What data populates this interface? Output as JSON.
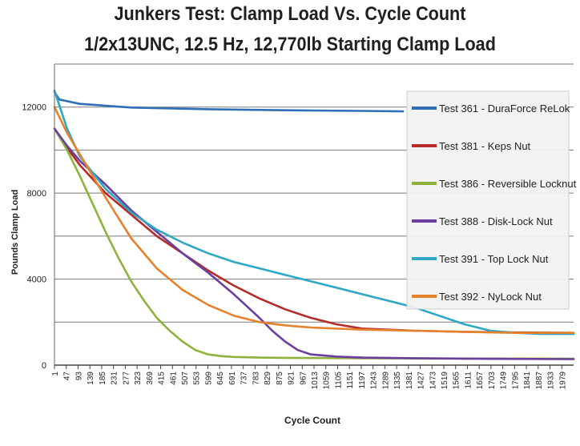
{
  "chart_data": {
    "type": "line",
    "title": "Junkers Test: Clamp Load Vs. Cycle Count",
    "subtitle": "1/2x13UNC, 12.5 Hz, 12,770lb Starting Clamp Load",
    "xlabel": "Cycle Count",
    "ylabel": "Pounds Clamp Load",
    "ylim": [
      0,
      14000
    ],
    "yticks": [
      0,
      4000,
      8000,
      12000
    ],
    "xlim": [
      1,
      2025
    ],
    "xticks": [
      1,
      47,
      93,
      139,
      185,
      231,
      277,
      323,
      369,
      415,
      461,
      507,
      553,
      599,
      645,
      691,
      737,
      783,
      829,
      875,
      921,
      967,
      1013,
      1059,
      1105,
      1151,
      1197,
      1243,
      1289,
      1335,
      1381,
      1427,
      1473,
      1519,
      1565,
      1611,
      1657,
      1703,
      1749,
      1795,
      1841,
      1887,
      1933,
      1979
    ],
    "grid": "horizontal",
    "legend_position": "right",
    "series": [
      {
        "name": "Test 361 - DuraForce ReLok",
        "color": "#2e6fb7",
        "x": [
          1,
          20,
          100,
          300,
          600,
          900,
          1200,
          1360
        ],
        "y": [
          12700,
          12350,
          12150,
          11980,
          11900,
          11850,
          11820,
          11800
        ]
      },
      {
        "name": "Test 381 - Keps Nut",
        "color": "#b52b27",
        "x": [
          1,
          50,
          100,
          200,
          300,
          400,
          500,
          600,
          700,
          800,
          900,
          1000,
          1100,
          1200,
          1300,
          1400,
          1600,
          1800,
          2025
        ],
        "y": [
          11000,
          10100,
          9300,
          8000,
          7000,
          6000,
          5200,
          4400,
          3700,
          3100,
          2600,
          2200,
          1900,
          1700,
          1650,
          1600,
          1550,
          1520,
          1500
        ]
      },
      {
        "name": "Test 386 - Reversible Locknut",
        "color": "#8db33c",
        "x": [
          1,
          50,
          100,
          150,
          200,
          250,
          300,
          350,
          400,
          450,
          500,
          550,
          600,
          650,
          700,
          800,
          900,
          1000,
          1200,
          1500,
          2025
        ],
        "y": [
          11000,
          10000,
          8800,
          7500,
          6200,
          5000,
          3900,
          3000,
          2200,
          1600,
          1100,
          700,
          500,
          420,
          380,
          350,
          340,
          330,
          320,
          310,
          300
        ]
      },
      {
        "name": "Test 388 - Disk-Lock Nut",
        "color": "#6a3f9e",
        "x": [
          1,
          50,
          100,
          200,
          300,
          400,
          500,
          600,
          700,
          800,
          850,
          900,
          950,
          1000,
          1050,
          1100,
          1200,
          1400,
          1600,
          2025
        ],
        "y": [
          11000,
          10200,
          9500,
          8400,
          7200,
          6200,
          5200,
          4300,
          3300,
          2200,
          1600,
          1100,
          700,
          500,
          450,
          400,
          350,
          320,
          300,
          280
        ]
      },
      {
        "name": "Test 391 - Top Lock Nut",
        "color": "#2ca7c5",
        "x": [
          1,
          50,
          100,
          200,
          300,
          400,
          500,
          600,
          700,
          800,
          900,
          1000,
          1100,
          1200,
          1300,
          1400,
          1500,
          1600,
          1700,
          1800,
          1900,
          2025
        ],
        "y": [
          12770,
          11000,
          9700,
          8200,
          7100,
          6300,
          5700,
          5200,
          4800,
          4500,
          4200,
          3900,
          3600,
          3300,
          3000,
          2700,
          2300,
          1900,
          1600,
          1500,
          1450,
          1450
        ]
      },
      {
        "name": "Test 392 - NyLock Nut",
        "color": "#e7822c",
        "x": [
          1,
          50,
          100,
          200,
          300,
          400,
          500,
          600,
          700,
          800,
          900,
          1000,
          1200,
          1400,
          1600,
          1800,
          2025
        ],
        "y": [
          12000,
          10800,
          9800,
          7800,
          5900,
          4500,
          3500,
          2800,
          2300,
          2000,
          1850,
          1750,
          1650,
          1600,
          1550,
          1500,
          1500
        ]
      }
    ]
  }
}
